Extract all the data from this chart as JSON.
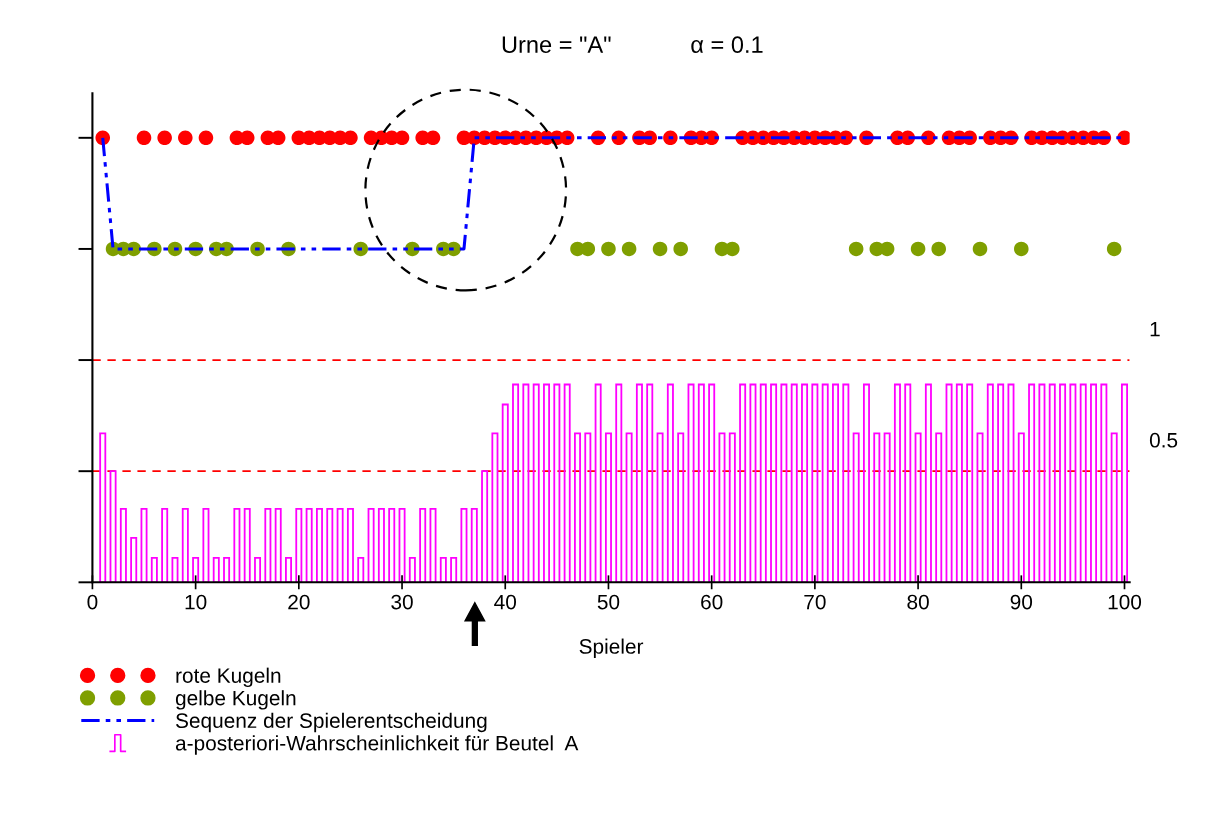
{
  "chart_data": {
    "type": "scatter",
    "title": "Urne = \"A\"            α = 0.1",
    "xlabel": "Spieler",
    "xlim": [
      0,
      100.5
    ],
    "xticks": [
      0,
      10,
      20,
      30,
      40,
      50,
      60,
      70,
      80,
      90,
      100
    ],
    "ylim": [
      0,
      2.2
    ],
    "yticks": [
      {
        "value": 0,
        "label": null
      },
      {
        "value": 0.5,
        "label": null
      },
      {
        "value": 1,
        "label": null
      },
      {
        "value": 1.5,
        "label": null
      },
      {
        "value": 2,
        "label": null
      }
    ],
    "tick_labels": "x",
    "grid": false,
    "legend": "bottom left",
    "ref_lines": [
      {
        "axis": "y",
        "value": 1,
        "label": "1",
        "color": "#ff0000",
        "line_style": "dashed"
      },
      {
        "axis": "y",
        "value": 0.5,
        "label": "0.5",
        "color": "#ff0000",
        "line_style": "dashed"
      }
    ],
    "series": [
      {
        "name": "rote Kugeln",
        "color": "#ff0000",
        "marker": "circle",
        "x": [
          1,
          5,
          7,
          9,
          11,
          14,
          15,
          17,
          18,
          20,
          21,
          22,
          23,
          24,
          25,
          27,
          28,
          29,
          30,
          32,
          33,
          36,
          37,
          38,
          39,
          40,
          41,
          42,
          43,
          44,
          45,
          46,
          49,
          51,
          53,
          54,
          56,
          58,
          59,
          60,
          63,
          64,
          65,
          66,
          67,
          68,
          69,
          70,
          71,
          72,
          73,
          75,
          78,
          79,
          81,
          83,
          84,
          85,
          87,
          88,
          89,
          91,
          92,
          93,
          94,
          95,
          96,
          97,
          98,
          100
        ],
        "values": [
          2,
          2,
          2,
          2,
          2,
          2,
          2,
          2,
          2,
          2,
          2,
          2,
          2,
          2,
          2,
          2,
          2,
          2,
          2,
          2,
          2,
          2,
          2,
          2,
          2,
          2,
          2,
          2,
          2,
          2,
          2,
          2,
          2,
          2,
          2,
          2,
          2,
          2,
          2,
          2,
          2,
          2,
          2,
          2,
          2,
          2,
          2,
          2,
          2,
          2,
          2,
          2,
          2,
          2,
          2,
          2,
          2,
          2,
          2,
          2,
          2,
          2,
          2,
          2,
          2,
          2,
          2,
          2,
          2,
          2
        ]
      },
      {
        "name": "gelbe Kugeln",
        "color": "#7f9f00",
        "marker": "circle",
        "x": [
          2,
          3,
          4,
          6,
          8,
          10,
          12,
          13,
          16,
          19,
          26,
          31,
          34,
          35,
          47,
          48,
          50,
          52,
          55,
          57,
          61,
          62,
          74,
          76,
          77,
          80,
          82,
          86,
          90,
          99
        ],
        "values": [
          1.5,
          1.5,
          1.5,
          1.5,
          1.5,
          1.5,
          1.5,
          1.5,
          1.5,
          1.5,
          1.5,
          1.5,
          1.5,
          1.5,
          1.5,
          1.5,
          1.5,
          1.5,
          1.5,
          1.5,
          1.5,
          1.5,
          1.5,
          1.5,
          1.5,
          1.5,
          1.5,
          1.5,
          1.5,
          1.5
        ]
      },
      {
        "name": "Sequenz der Spielerentscheidung",
        "type": "line",
        "color": "#0000ff",
        "line_style": "dashdot",
        "x": [
          1,
          2,
          3,
          4,
          5,
          6,
          7,
          8,
          9,
          10,
          11,
          12,
          13,
          14,
          15,
          16,
          17,
          18,
          19,
          20,
          21,
          22,
          23,
          24,
          25,
          26,
          27,
          28,
          29,
          30,
          31,
          32,
          33,
          34,
          35,
          36,
          37,
          38,
          39,
          40,
          41,
          42,
          43,
          44,
          45,
          46,
          47,
          48,
          49,
          50,
          51,
          52,
          53,
          54,
          55,
          56,
          57,
          58,
          59,
          60,
          61,
          62,
          63,
          64,
          65,
          66,
          67,
          68,
          69,
          70,
          71,
          72,
          73,
          74,
          75,
          76,
          77,
          78,
          79,
          80,
          81,
          82,
          83,
          84,
          85,
          86,
          87,
          88,
          89,
          90,
          91,
          92,
          93,
          94,
          95,
          96,
          97,
          98,
          99,
          100
        ],
        "values": [
          2,
          1.5,
          1.5,
          1.5,
          1.5,
          1.5,
          1.5,
          1.5,
          1.5,
          1.5,
          1.5,
          1.5,
          1.5,
          1.5,
          1.5,
          1.5,
          1.5,
          1.5,
          1.5,
          1.5,
          1.5,
          1.5,
          1.5,
          1.5,
          1.5,
          1.5,
          1.5,
          1.5,
          1.5,
          1.5,
          1.5,
          1.5,
          1.5,
          1.5,
          1.5,
          1.5,
          2,
          2,
          2,
          2,
          2,
          2,
          2,
          2,
          2,
          2,
          2,
          2,
          2,
          2,
          2,
          2,
          2,
          2,
          2,
          2,
          2,
          2,
          2,
          2,
          2,
          2,
          2,
          2,
          2,
          2,
          2,
          2,
          2,
          2,
          2,
          2,
          2,
          2,
          2,
          2,
          2,
          2,
          2,
          2,
          2,
          2,
          2,
          2,
          2,
          2,
          2,
          2,
          2,
          2,
          2,
          2,
          2,
          2,
          2,
          2,
          2,
          2,
          2,
          2
        ]
      },
      {
        "name": "a-posteriori-Wahrscheinlichkeit für Beutel  A",
        "type": "bar",
        "color": "#ff00ff",
        "x": [
          1,
          2,
          3,
          4,
          5,
          6,
          7,
          8,
          9,
          10,
          11,
          12,
          13,
          14,
          15,
          16,
          17,
          18,
          19,
          20,
          21,
          22,
          23,
          24,
          25,
          26,
          27,
          28,
          29,
          30,
          31,
          32,
          33,
          34,
          35,
          36,
          37,
          38,
          39,
          40,
          41,
          42,
          43,
          44,
          45,
          46,
          47,
          48,
          49,
          50,
          51,
          52,
          53,
          54,
          55,
          56,
          57,
          58,
          59,
          60,
          61,
          62,
          63,
          64,
          65,
          66,
          67,
          68,
          69,
          70,
          71,
          72,
          73,
          74,
          75,
          76,
          77,
          78,
          79,
          80,
          81,
          82,
          83,
          84,
          85,
          86,
          87,
          88,
          89,
          90,
          91,
          92,
          93,
          94,
          95,
          96,
          97,
          98,
          99,
          100
        ],
        "values": [
          0.67,
          0.5,
          0.33,
          0.2,
          0.33,
          0.11,
          0.33,
          0.11,
          0.33,
          0.11,
          0.33,
          0.11,
          0.11,
          0.33,
          0.33,
          0.11,
          0.33,
          0.33,
          0.11,
          0.33,
          0.33,
          0.33,
          0.33,
          0.33,
          0.33,
          0.11,
          0.33,
          0.33,
          0.33,
          0.33,
          0.11,
          0.33,
          0.33,
          0.11,
          0.11,
          0.33,
          0.33,
          0.5,
          0.67,
          0.8,
          0.89,
          0.89,
          0.89,
          0.89,
          0.89,
          0.89,
          0.67,
          0.67,
          0.89,
          0.67,
          0.89,
          0.67,
          0.89,
          0.89,
          0.67,
          0.89,
          0.67,
          0.89,
          0.89,
          0.89,
          0.67,
          0.67,
          0.89,
          0.89,
          0.89,
          0.89,
          0.89,
          0.89,
          0.89,
          0.89,
          0.89,
          0.89,
          0.89,
          0.67,
          0.89,
          0.67,
          0.67,
          0.89,
          0.89,
          0.67,
          0.89,
          0.67,
          0.89,
          0.89,
          0.89,
          0.67,
          0.89,
          0.89,
          0.89,
          0.67,
          0.89,
          0.89,
          0.89,
          0.89,
          0.89,
          0.89,
          0.89,
          0.89,
          0.67,
          0.89
        ]
      }
    ]
  }
}
